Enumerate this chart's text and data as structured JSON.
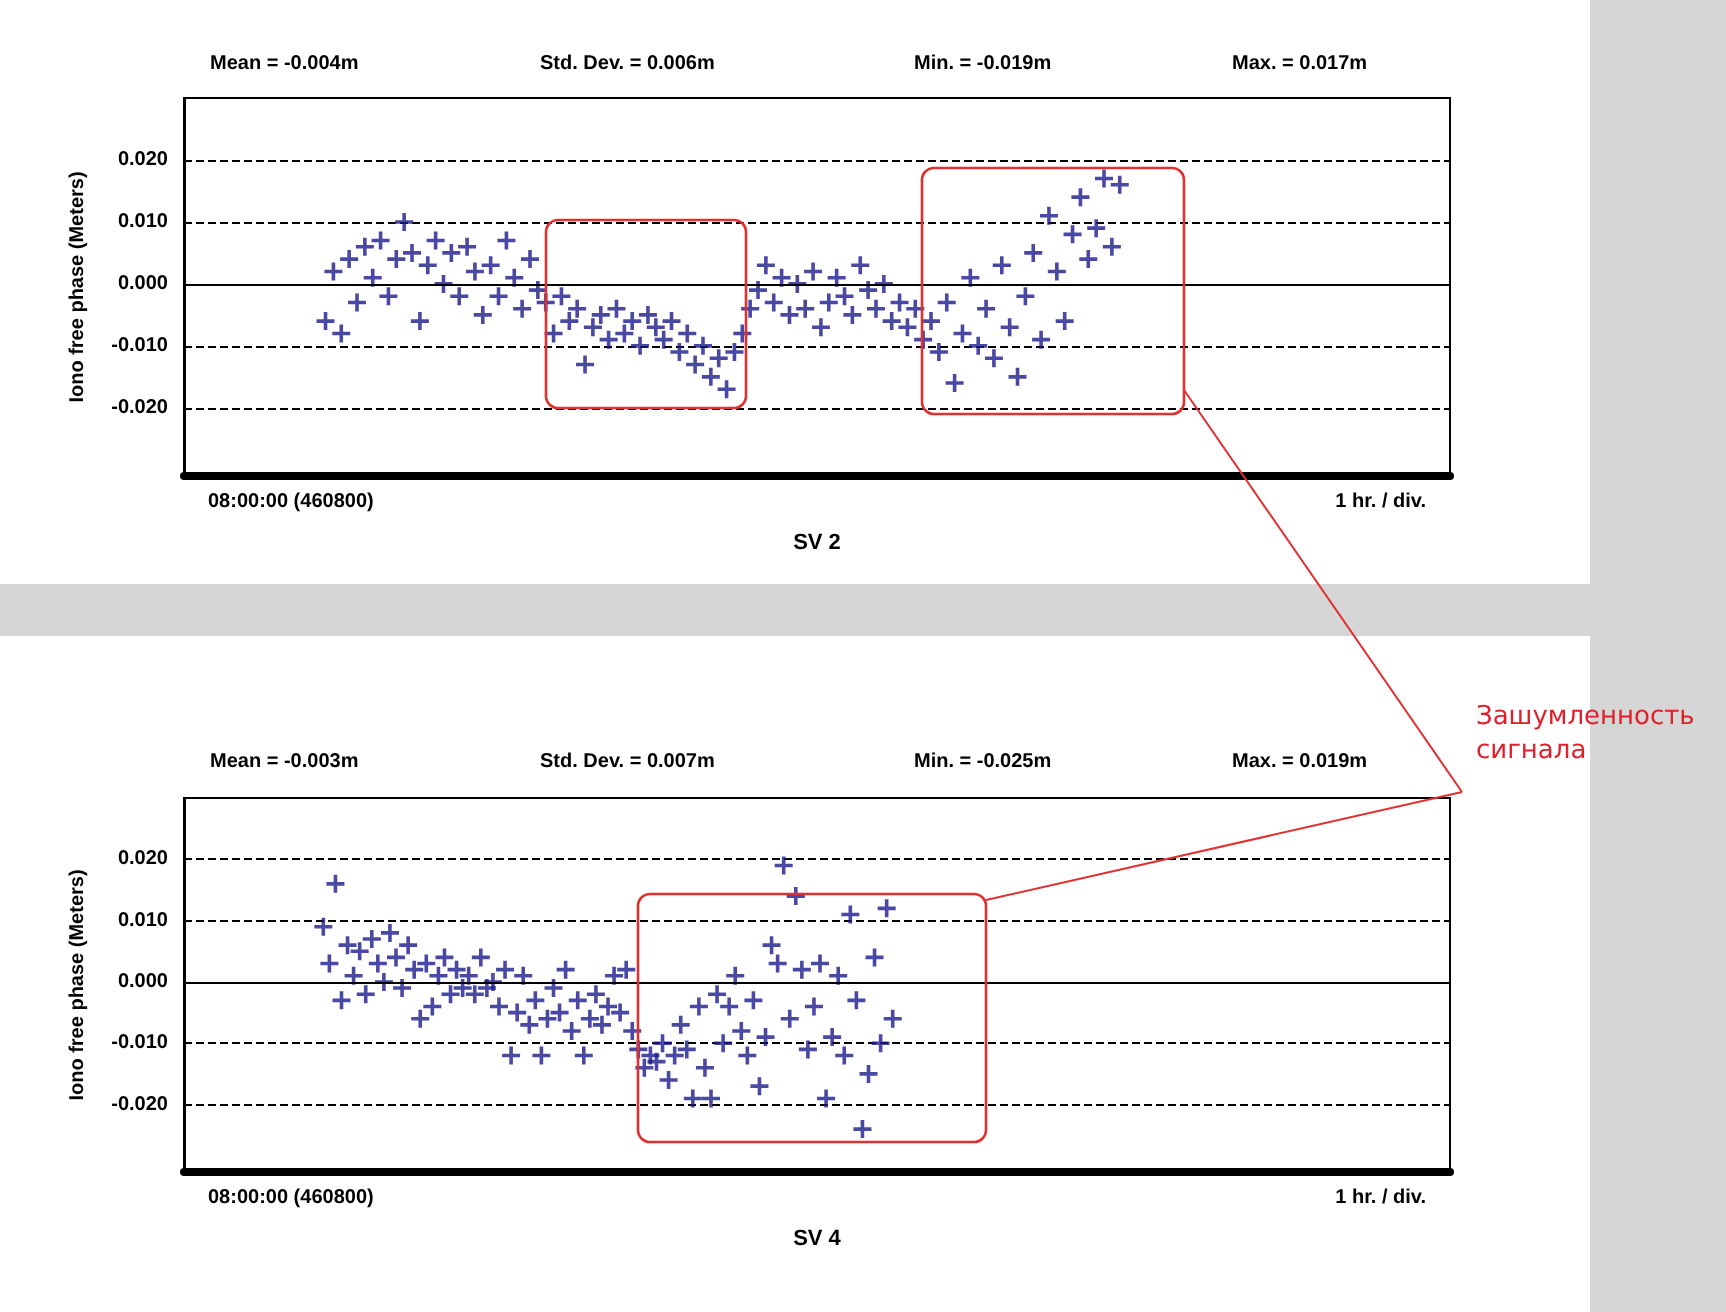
{
  "chart_data": [
    {
      "type": "scatter",
      "xlabel": "SV 2",
      "ylabel": "Iono free phase (Meters)",
      "color": "#1c1c8c",
      "marker": "cross",
      "grid": "y",
      "annotations": [
        "Mean = -0.004m",
        "Std. Dev. = 0.006m",
        "Min. = -0.019m",
        "Max. = 0.017m",
        "08:00:00 (460800)",
        "1 hr. / div."
      ],
      "ref_lines": [
        {
          "axis": "y",
          "value": 0,
          "color": "#000000",
          "line_style": "solid"
        }
      ],
      "ylim": [
        -0.031,
        0.03
      ],
      "yticks": [
        {
          "value": -0.02,
          "label": "-0.020"
        },
        {
          "value": -0.01,
          "label": "-0.010"
        },
        {
          "value": 0,
          "label": "0.000"
        },
        {
          "value": 0.01,
          "label": "0.010"
        },
        {
          "value": 0.02,
          "label": "0.020"
        }
      ],
      "categories": [
        null,
        null,
        null,
        null,
        null,
        null,
        null,
        null,
        null,
        null,
        null,
        null,
        null,
        null,
        null,
        null,
        null,
        null,
        null,
        null,
        null,
        null,
        null,
        null,
        null,
        null,
        null,
        null,
        null,
        null,
        null,
        null,
        null,
        null,
        null,
        null,
        null,
        null,
        null,
        null,
        null,
        null,
        null,
        null,
        null,
        null,
        null,
        null,
        null,
        null,
        null,
        null,
        null,
        null,
        null,
        null,
        null,
        null,
        null,
        null,
        null,
        null,
        null,
        null,
        null,
        null,
        null,
        null,
        null,
        null,
        null,
        null,
        null,
        null,
        null,
        null,
        null,
        null,
        null,
        null,
        null,
        null,
        null,
        null,
        null,
        null,
        null,
        null,
        null,
        null,
        null,
        null,
        null,
        null,
        null,
        null,
        null,
        null,
        null,
        null,
        null,
        null,
        null,
        null,
        null,
        null,
        null,
        null,
        null,
        null,
        null,
        null,
        null,
        null,
        null,
        null,
        null,
        null,
        null,
        null,
        null,
        null,
        null,
        null,
        null,
        null,
        null,
        null,
        null,
        null,
        null,
        null,
        null,
        null,
        null,
        null,
        null,
        null,
        null,
        null,
        null,
        null,
        null,
        null,
        null,
        null,
        null,
        null,
        null,
        null,
        null,
        null,
        null,
        null,
        null,
        null,
        null,
        null,
        null,
        null,
        null,
        null
      ],
      "values": [
        null,
        null,
        null,
        null,
        null,
        null,
        null,
        null,
        null,
        null,
        null,
        null,
        null,
        null,
        null,
        null,
        null,
        null,
        -0.006,
        0.002,
        -0.008,
        0.004,
        -0.003,
        0.006,
        0.001,
        0.007,
        -0.002,
        0.004,
        0.01,
        0.005,
        -0.006,
        0.003,
        0.007,
        0.0,
        0.005,
        -0.002,
        0.006,
        0.002,
        -0.005,
        0.003,
        -0.002,
        0.007,
        0.001,
        -0.004,
        0.004,
        -0.001,
        -0.003,
        -0.008,
        -0.002,
        -0.006,
        -0.004,
        -0.013,
        -0.007,
        -0.005,
        -0.009,
        -0.004,
        -0.008,
        -0.006,
        -0.01,
        -0.005,
        -0.007,
        -0.009,
        -0.006,
        -0.011,
        -0.008,
        -0.013,
        -0.01,
        -0.015,
        -0.012,
        -0.017,
        -0.011,
        -0.008,
        -0.004,
        -0.001,
        0.003,
        -0.003,
        0.001,
        -0.005,
        0.0,
        -0.004,
        0.002,
        -0.007,
        -0.003,
        0.001,
        -0.002,
        -0.005,
        0.003,
        -0.001,
        -0.004,
        0.0,
        -0.006,
        -0.003,
        -0.007,
        -0.004,
        -0.009,
        -0.006,
        -0.011,
        -0.003,
        -0.016,
        -0.008,
        0.001,
        -0.01,
        -0.004,
        -0.012,
        0.003,
        -0.007,
        -0.015,
        -0.002,
        0.005,
        -0.009,
        0.011,
        0.002,
        -0.006,
        0.008,
        0.014,
        0.004,
        0.009,
        0.017,
        0.006,
        0.016,
        null,
        null,
        null,
        null,
        null,
        null,
        null,
        null,
        null,
        null,
        null,
        null,
        null,
        null,
        null,
        null,
        null,
        null,
        null,
        null,
        null,
        null,
        null,
        null,
        null,
        null,
        null,
        null,
        null,
        null,
        null,
        null,
        null,
        null,
        null,
        null,
        null,
        null,
        null,
        null,
        null,
        null
      ]
    },
    {
      "type": "scatter",
      "xlabel": "SV 4",
      "ylabel": "Iono free phase (Meters)",
      "color": "#1c1c8c",
      "marker": "cross",
      "grid": "y",
      "annotations": [
        "Mean = -0.003m",
        "Std. Dev. = 0.007m",
        "Min. = -0.025m",
        "Max. = 0.019m",
        "08:00:00 (460800)",
        "1 hr. / div.",
        "Зашумленность сигнала"
      ],
      "ref_lines": [
        {
          "axis": "y",
          "value": 0,
          "color": "#000000",
          "line_style": "solid"
        }
      ],
      "ylim": [
        -0.031,
        0.03
      ],
      "yticks": [
        {
          "value": -0.02,
          "label": "-0.020"
        },
        {
          "value": -0.01,
          "label": "-0.010"
        },
        {
          "value": 0,
          "label": "0.000"
        },
        {
          "value": 0.01,
          "label": "0.010"
        },
        {
          "value": 0.02,
          "label": "0.020"
        }
      ],
      "categories": [
        null,
        null,
        null,
        null,
        null,
        null,
        null,
        null,
        null,
        null,
        null,
        null,
        null,
        null,
        null,
        null,
        null,
        null,
        null,
        null,
        null,
        null,
        null,
        null,
        null,
        null,
        null,
        null,
        null,
        null,
        null,
        null,
        null,
        null,
        null,
        null,
        null,
        null,
        null,
        null,
        null,
        null,
        null,
        null,
        null,
        null,
        null,
        null,
        null,
        null,
        null,
        null,
        null,
        null,
        null,
        null,
        null,
        null,
        null,
        null,
        null,
        null,
        null,
        null,
        null,
        null,
        null,
        null,
        null,
        null,
        null,
        null,
        null,
        null,
        null,
        null,
        null,
        null,
        null,
        null,
        null,
        null,
        null,
        null,
        null,
        null,
        null,
        null,
        null,
        null,
        null,
        null,
        null,
        null,
        null,
        null,
        null,
        null,
        null,
        null,
        null,
        null,
        null,
        null,
        null,
        null,
        null,
        null,
        null,
        null,
        null,
        null,
        null,
        null,
        null,
        null,
        null,
        null,
        null,
        null,
        null,
        null,
        null,
        null,
        null,
        null,
        null,
        null,
        null,
        null,
        null,
        null,
        null,
        null,
        null,
        null,
        null,
        null,
        null,
        null,
        null,
        null,
        null,
        null,
        null,
        null,
        null,
        null,
        null,
        null,
        null,
        null,
        null,
        null,
        null,
        null,
        null,
        null,
        null,
        null,
        null,
        null,
        null,
        null,
        null,
        null,
        null,
        null,
        null,
        null,
        null,
        null,
        null,
        null,
        null,
        null,
        null,
        null,
        null,
        null,
        null,
        null,
        null,
        null,
        null,
        null,
        null,
        null,
        null,
        null,
        null,
        null,
        null,
        null,
        null,
        null,
        null,
        null,
        null,
        null,
        null,
        null,
        null,
        null,
        null,
        null,
        null,
        null,
        null,
        null
      ],
      "values": [
        null,
        null,
        null,
        null,
        null,
        null,
        null,
        null,
        null,
        null,
        null,
        null,
        null,
        null,
        null,
        null,
        null,
        null,
        null,
        null,
        null,
        null,
        null,
        0.009,
        0.003,
        0.016,
        -0.003,
        0.006,
        0.001,
        0.005,
        -0.002,
        0.007,
        0.003,
        0.0,
        0.008,
        0.004,
        -0.001,
        0.006,
        0.002,
        -0.006,
        0.003,
        -0.004,
        0.001,
        0.004,
        -0.002,
        0.002,
        -0.001,
        0.001,
        -0.002,
        0.004,
        -0.001,
        0.0,
        -0.004,
        0.002,
        -0.012,
        -0.005,
        0.001,
        -0.007,
        -0.003,
        -0.012,
        -0.006,
        -0.001,
        -0.005,
        0.002,
        -0.008,
        -0.003,
        -0.012,
        -0.006,
        -0.002,
        -0.007,
        -0.004,
        0.001,
        -0.005,
        0.002,
        -0.008,
        -0.011,
        -0.014,
        -0.012,
        -0.013,
        -0.01,
        -0.016,
        -0.012,
        -0.007,
        -0.011,
        -0.019,
        -0.004,
        -0.014,
        -0.019,
        -0.002,
        -0.01,
        -0.004,
        0.001,
        -0.008,
        -0.012,
        -0.003,
        -0.017,
        -0.009,
        0.006,
        0.003,
        0.019,
        -0.006,
        0.014,
        0.002,
        -0.011,
        -0.004,
        0.003,
        -0.019,
        -0.009,
        0.001,
        -0.012,
        0.011,
        -0.003,
        -0.024,
        -0.015,
        0.004,
        -0.01,
        0.012,
        -0.006,
        null,
        null,
        null,
        null,
        null,
        null,
        null,
        null,
        null,
        null,
        null,
        null,
        null,
        null,
        null,
        null,
        null,
        null,
        null,
        null,
        null,
        null,
        null,
        null,
        null,
        null,
        null,
        null,
        null,
        null,
        null,
        null,
        null,
        null,
        null,
        null,
        null,
        null,
        null,
        null,
        null,
        null,
        null,
        null,
        null,
        null,
        null,
        null,
        null,
        null,
        null,
        null,
        null,
        null,
        null,
        null,
        null,
        null,
        null,
        null,
        null,
        null,
        null,
        null,
        null,
        null,
        null,
        null,
        null,
        null,
        null,
        null,
        null,
        null,
        null,
        null,
        null,
        null,
        null,
        null,
        null,
        null,
        null,
        null,
        null,
        null,
        null,
        null,
        null,
        null,
        null,
        null
      ]
    }
  ]
}
